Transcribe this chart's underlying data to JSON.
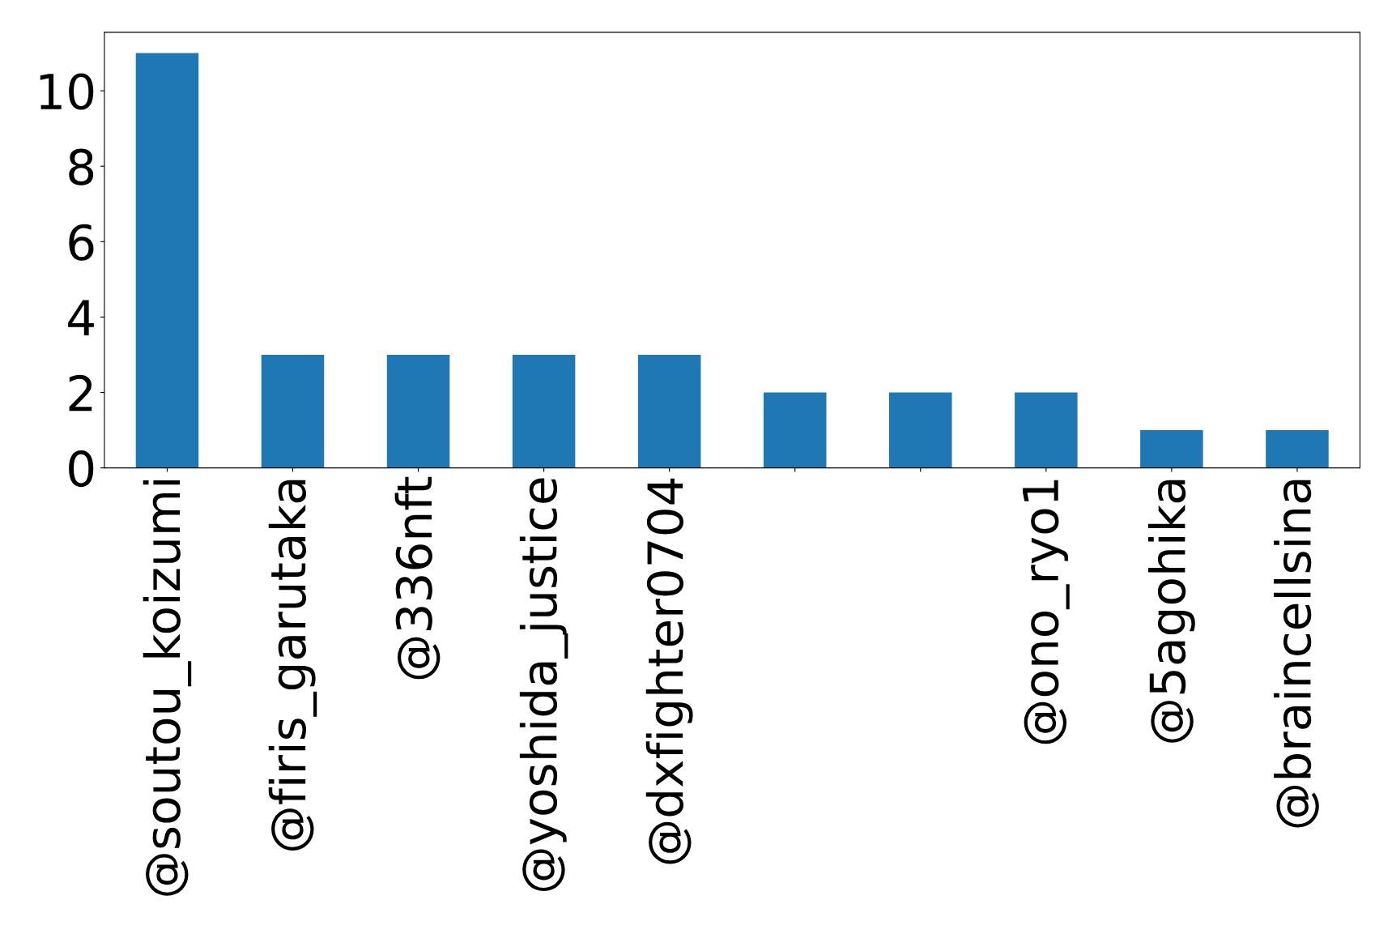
{
  "chart_data": {
    "type": "bar",
    "categories": [
      "@soutou_koizumi",
      "@firis_garutaka",
      "@336nft",
      "@yoshida_justice",
      "@dxfighter0704",
      null,
      null,
      "@ono_ryo1",
      "@5agohika",
      "@braincellsina"
    ],
    "values": [
      11,
      3,
      3,
      3,
      3,
      2,
      2,
      2,
      1,
      1
    ],
    "color": "#1f77b4",
    "ylim": [
      0,
      11.55
    ],
    "yticks": [
      0,
      2,
      4,
      6,
      8,
      10
    ],
    "grid": false
  }
}
